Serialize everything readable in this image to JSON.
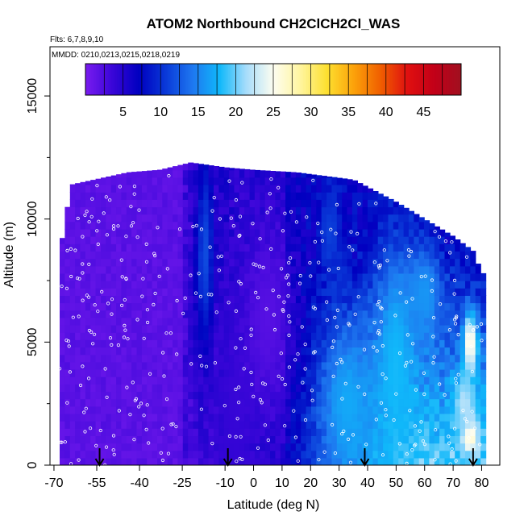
{
  "chart_data": {
    "type": "heatmap",
    "title": "ATOM2 Northbound CH2ClCH2Cl_WAS",
    "flights_label": "Flts: 6,7,8,9,10",
    "dates_label": "MMDD: 0210,0213,0215,0218,0219",
    "xlabel": "Latitude (deg N)",
    "ylabel": "Altitude (m)",
    "xlim": [
      -70,
      82
    ],
    "ylim": [
      0,
      17000
    ],
    "x_ticks": [
      -70,
      -55,
      -40,
      -25,
      -10,
      0,
      10,
      20,
      30,
      40,
      50,
      60,
      70,
      80
    ],
    "y_ticks": [
      0,
      5000,
      10000,
      15000
    ],
    "colorbar": {
      "ticks": [
        5,
        10,
        15,
        20,
        25,
        30,
        35,
        40,
        45
      ],
      "range": [
        0,
        50
      ],
      "colors": [
        "#7a1cf0",
        "#3a06d8",
        "#0000c0",
        "#0a3ad8",
        "#1e78f0",
        "#10b8fa",
        "#a8ddfb",
        "#fdfdf0",
        "#fff5a0",
        "#fde030",
        "#fca20a",
        "#f05e00",
        "#e01010",
        "#c20018",
        "#a01020"
      ]
    },
    "arrows_latitude": [
      -54,
      -9,
      39,
      77
    ],
    "top_profile": [
      {
        "lat": -68,
        "alt_top": 8600
      },
      {
        "lat": -64,
        "alt_top": 11400
      },
      {
        "lat": -44,
        "alt_top": 11900
      },
      {
        "lat": -33,
        "alt_top": 12000
      },
      {
        "lat": -22,
        "alt_top": 12300
      },
      {
        "lat": -10,
        "alt_top": 12100
      },
      {
        "lat": 0,
        "alt_top": 12000
      },
      {
        "lat": 15,
        "alt_top": 11900
      },
      {
        "lat": 35,
        "alt_top": 11600
      },
      {
        "lat": 50,
        "alt_top": 10700
      },
      {
        "lat": 60,
        "alt_top": 10000
      },
      {
        "lat": 70,
        "alt_top": 9300
      },
      {
        "lat": 77,
        "alt_top": 8700
      },
      {
        "lat": 80,
        "alt_top": 7800
      }
    ],
    "field_features": [
      {
        "lat": -17,
        "alt": 8500,
        "value": 12,
        "width_deg": 4,
        "height_m": 5000
      },
      {
        "lat": -7,
        "alt": 1500,
        "value": 4,
        "width_deg": 10,
        "height_m": 6000
      },
      {
        "lat": 5,
        "alt": 6000,
        "value": 2,
        "width_deg": 12,
        "height_m": 5000
      },
      {
        "lat": 27,
        "alt": 9500,
        "value": 11,
        "width_deg": 5,
        "height_m": 2500
      },
      {
        "lat": 33,
        "alt": 2500,
        "value": 17,
        "width_deg": 12,
        "height_m": 4000
      },
      {
        "lat": 50,
        "alt": 4000,
        "value": 18,
        "width_deg": 10,
        "height_m": 6000
      },
      {
        "lat": 60,
        "alt": 7000,
        "value": 16,
        "width_deg": 8,
        "height_m": 2500
      },
      {
        "lat": 76,
        "alt": 5000,
        "value": 27,
        "width_deg": 3,
        "height_m": 1500
      },
      {
        "lat": 76,
        "alt": 1200,
        "value": 28,
        "width_deg": 3,
        "height_m": 800
      },
      {
        "lat": 74,
        "alt": 2500,
        "value": 22,
        "width_deg": 5,
        "height_m": 1500
      }
    ]
  }
}
